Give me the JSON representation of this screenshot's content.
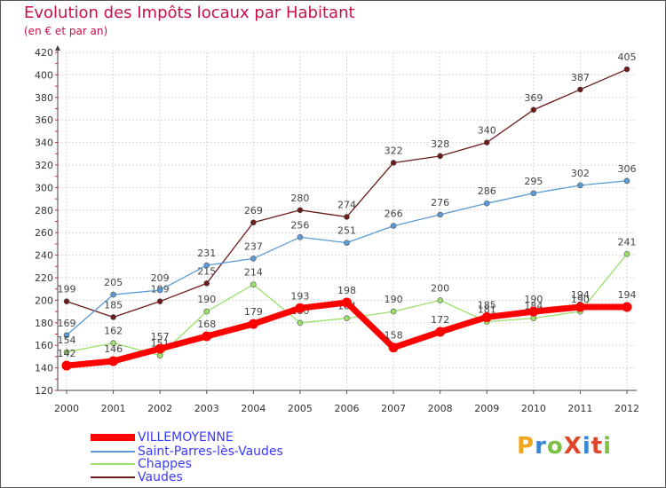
{
  "title": "Evolution des Impôts locaux par Habitant",
  "subtitle": "(en € et par an)",
  "logo": {
    "text": "ProXiti",
    "colors": [
      "#f2a51a",
      "#3a86d4",
      "#7cc142",
      "#e0462a",
      "#3a86d4",
      "#e0462a",
      "#7cc142"
    ]
  },
  "chart_data": {
    "type": "line",
    "x": [
      2000,
      2001,
      2002,
      2003,
      2004,
      2005,
      2006,
      2007,
      2008,
      2009,
      2010,
      2011,
      2012
    ],
    "ylim": [
      120,
      420
    ],
    "yticks": [
      120,
      140,
      160,
      180,
      200,
      220,
      240,
      260,
      280,
      300,
      320,
      340,
      360,
      380,
      400,
      420
    ],
    "grid": true,
    "series": [
      {
        "name": "Vaudes",
        "color": "#6b1a1a",
        "values": [
          199,
          185,
          199,
          215,
          269,
          280,
          274,
          322,
          328,
          340,
          369,
          387,
          405
        ]
      },
      {
        "name": "Saint-Parres-lès-Vaudes",
        "color": "#5b9bd5",
        "values": [
          169,
          205,
          209,
          231,
          237,
          256,
          251,
          266,
          276,
          286,
          295,
          302,
          306
        ]
      },
      {
        "name": "Chappes",
        "color": "#9be06a",
        "values": [
          154,
          162,
          151,
          190,
          214,
          180,
          184,
          190,
          200,
          181,
          184,
          190,
          241
        ]
      },
      {
        "name": "VILLEMOYENNE",
        "color": "#ff0000",
        "values": [
          142,
          146,
          157,
          168,
          179,
          193,
          198,
          158,
          172,
          185,
          190,
          194,
          194
        ]
      }
    ]
  },
  "legend": [
    {
      "name": "VILLEMOYENNE",
      "color": "#ff0000"
    },
    {
      "name": "Saint-Parres-lès-Vaudes",
      "color": "#5b9bd5"
    },
    {
      "name": "Chappes",
      "color": "#9be06a"
    },
    {
      "name": "Vaudes",
      "color": "#6b1a1a"
    }
  ]
}
